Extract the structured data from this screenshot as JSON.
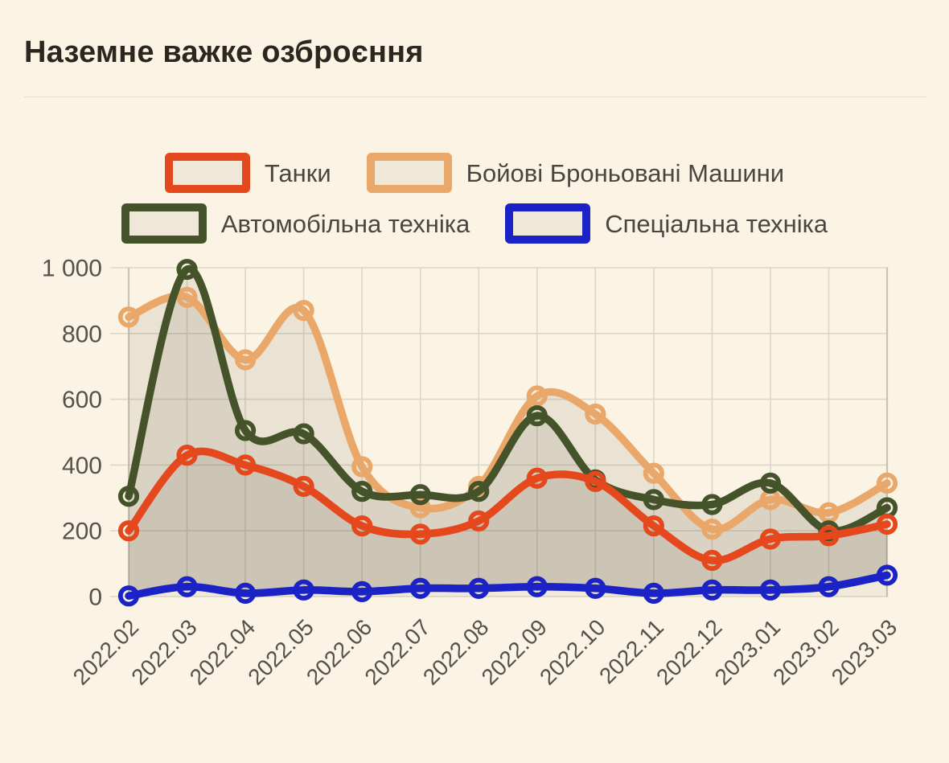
{
  "title": "Наземне важке озброєння",
  "legend": [
    {
      "id": "tanks",
      "label": "Танки",
      "color": "#E5481D"
    },
    {
      "id": "bbm",
      "label": "Бойові Броньовані Машини",
      "color": "#EAA76A"
    },
    {
      "id": "auto",
      "label": "Автомобільна техніка",
      "color": "#45532B"
    },
    {
      "id": "special",
      "label": "Спеціальна техніка",
      "color": "#1B23C7"
    }
  ],
  "colors": {
    "background": "#FBF3E3",
    "grid": "#DCD7C6",
    "grid_edge": "#C9C3B2",
    "axis_label": "#56514A",
    "title_text": "#2B2620",
    "area_fill": "rgba(62,56,40,0.09)",
    "area_fill_base": "rgba(62,56,40,0.05)"
  },
  "chart_data": {
    "type": "line",
    "title": "Наземне важке озброєння",
    "x": [
      "2022.02",
      "2022.03",
      "2022.04",
      "2022.05",
      "2022.06",
      "2022.07",
      "2022.08",
      "2022.09",
      "2022.10",
      "2022.11",
      "2022.12",
      "2023.01",
      "2023.02",
      "2023.03"
    ],
    "series": [
      {
        "id": "bbm",
        "name": "Бойові Броньовані Машини",
        "color": "#EAA76A",
        "values": [
          850,
          910,
          720,
          870,
          395,
          270,
          335,
          610,
          555,
          375,
          205,
          295,
          255,
          345
        ]
      },
      {
        "id": "auto",
        "name": "Автомобільна техніка",
        "color": "#45532B",
        "values": [
          305,
          995,
          505,
          495,
          320,
          310,
          320,
          550,
          355,
          295,
          280,
          345,
          200,
          270
        ]
      },
      {
        "id": "tanks",
        "name": "Танки",
        "color": "#E5481D",
        "values": [
          200,
          430,
          400,
          335,
          215,
          190,
          230,
          360,
          350,
          215,
          110,
          175,
          185,
          220
        ]
      },
      {
        "id": "special",
        "name": "Спеціальна техніка",
        "color": "#1B23C7",
        "values": [
          2,
          30,
          10,
          20,
          15,
          25,
          25,
          30,
          25,
          10,
          20,
          20,
          30,
          65
        ]
      }
    ],
    "ylim": [
      0,
      1000
    ],
    "yticks": [
      0,
      200,
      400,
      600,
      800,
      1000
    ],
    "ytick_labels": [
      "0",
      "200",
      "400",
      "600",
      "800",
      "1 000"
    ],
    "grid": true,
    "legend_position": "top",
    "x_label_rotation": -45,
    "smooth": true
  }
}
